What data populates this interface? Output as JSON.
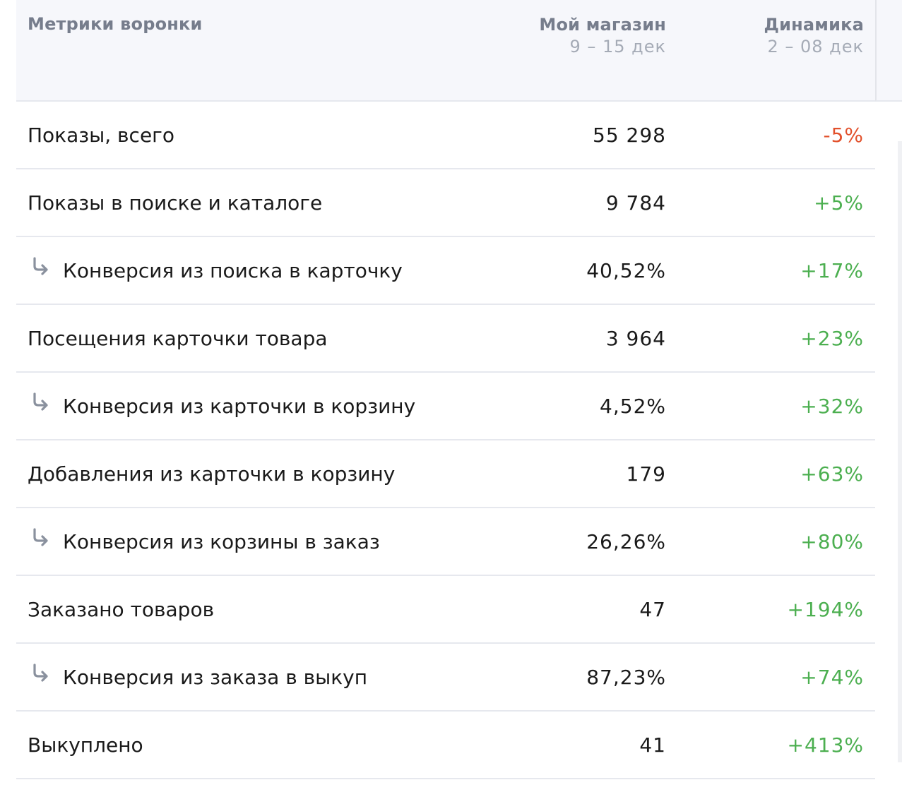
{
  "header": {
    "metric_label": "Метрики воронки",
    "shop_label": "Мой магазин",
    "shop_period": "9 – 15 дек",
    "dynamics_label": "Динамика",
    "dynamics_period": "2 – 08 дек"
  },
  "rows": [
    {
      "label": "Показы, всего",
      "value": "55 298",
      "delta": "-5%",
      "trend": "down",
      "sub": false
    },
    {
      "label": "Показы в поиске и каталоге",
      "value": "9 784",
      "delta": "+5%",
      "trend": "up",
      "sub": false
    },
    {
      "label": "Конверсия из поиска в карточку",
      "value": "40,52%",
      "delta": "+17%",
      "trend": "up",
      "sub": true
    },
    {
      "label": "Посещения карточки товара",
      "value": "3 964",
      "delta": "+23%",
      "trend": "up",
      "sub": false
    },
    {
      "label": "Конверсия из карточки в корзину",
      "value": "4,52%",
      "delta": "+32%",
      "trend": "up",
      "sub": true
    },
    {
      "label": "Добавления из карточки в корзину",
      "value": "179",
      "delta": "+63%",
      "trend": "up",
      "sub": false
    },
    {
      "label": "Конверсия из корзины в заказ",
      "value": "26,26%",
      "delta": "+80%",
      "trend": "up",
      "sub": true
    },
    {
      "label": "Заказано товаров",
      "value": "47",
      "delta": "+194%",
      "trend": "up",
      "sub": false
    },
    {
      "label": "Конверсия из заказа в выкуп",
      "value": "87,23%",
      "delta": "+74%",
      "trend": "up",
      "sub": true
    },
    {
      "label": "Выкуплено",
      "value": "41",
      "delta": "+413%",
      "trend": "up",
      "sub": false
    }
  ],
  "icons": {
    "sub_row_icon": "return-arrow-icon"
  },
  "colors": {
    "positive": "#4caf50",
    "negative": "#e2502b",
    "header_bg": "#f6f7fb"
  }
}
